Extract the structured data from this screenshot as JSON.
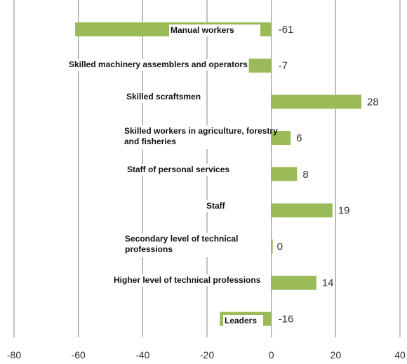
{
  "chart_data": {
    "type": "bar",
    "orientation": "horizontal",
    "categories": [
      "Manual workers",
      "Skilled machinery assemblers and operators",
      "Skilled scraftsmen",
      "Skilled workers in agriculture, forestry and fisheries",
      "Staff of personal services",
      "Staff",
      "Secondary level of technical professions",
      "Higher level of technical professions",
      "Leaders"
    ],
    "values": [
      -61,
      -7,
      28,
      6,
      8,
      19,
      0,
      14,
      -16
    ],
    "value_labels": [
      "-61",
      "-7",
      "28",
      "6",
      "8",
      "19",
      "0",
      "14",
      "-16"
    ],
    "xlim": [
      -80,
      40
    ],
    "x_ticks": [
      -80,
      -60,
      -40,
      -20,
      0,
      20,
      40
    ],
    "grid": "vertical",
    "legend": "none",
    "bar_color": "#9bbb59",
    "title": "",
    "xlabel": "",
    "ylabel": ""
  }
}
